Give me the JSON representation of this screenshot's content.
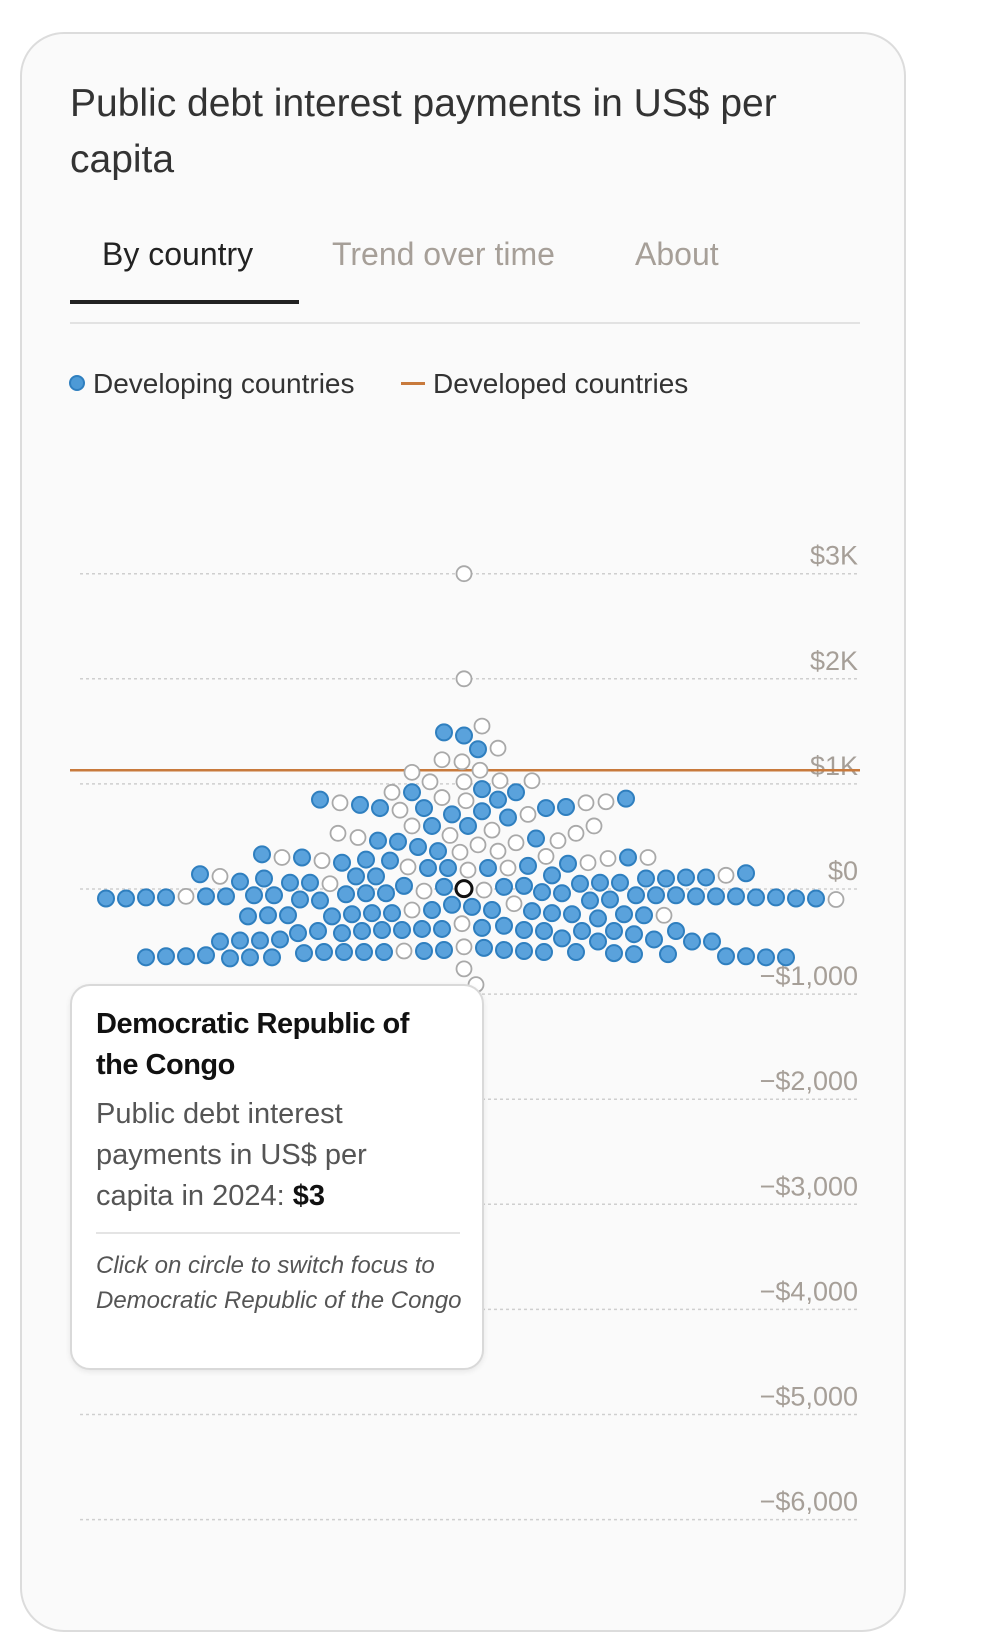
{
  "title": "Public debt interest payments in US$ per capita",
  "tabs": [
    {
      "label": "By country",
      "active": true
    },
    {
      "label": "Trend over time",
      "active": false
    },
    {
      "label": "About",
      "active": false
    }
  ],
  "legend": {
    "developing": "Developing countries",
    "developed": "Developed countries"
  },
  "colors": {
    "developing_fill": "#5aa2dc",
    "developing_stroke": "#2f7fbf",
    "other_stroke": "#a9a9a9",
    "developed_line": "#c87a3c",
    "highlight_stroke": "#111111",
    "axis_label": "#a69f98",
    "grid": "#cfcfcf"
  },
  "chart_data": {
    "type": "scatter",
    "title": "Public debt interest payments in US$ per capita",
    "xlabel": "",
    "ylabel": "",
    "ylim": [
      -6000,
      3000
    ],
    "y_ticks": [
      {
        "value": 3000,
        "label": "$3K"
      },
      {
        "value": 2000,
        "label": "$2K"
      },
      {
        "value": 1000,
        "label": "$1K"
      },
      {
        "value": 0,
        "label": "$0"
      },
      {
        "value": -1000,
        "label": "−$1,000"
      },
      {
        "value": -2000,
        "label": "−$2,000"
      },
      {
        "value": -3000,
        "label": "−$3,000"
      },
      {
        "value": -4000,
        "label": "−$4,000"
      },
      {
        "value": -5000,
        "label": "−$5,000"
      },
      {
        "value": -6000,
        "label": "−$6,000"
      }
    ],
    "grid": true,
    "legend_position": "top-left",
    "developed_reference": 1130,
    "highlighted": {
      "country": "Democratic Republic of the Congo",
      "year": 2024,
      "value": 3
    },
    "developing_values": [
      1490,
      1460,
      1330,
      950,
      920,
      920,
      850,
      860,
      850,
      780,
      770,
      770,
      770,
      740,
      600,
      680,
      710,
      800,
      600,
      460,
      330,
      450,
      480,
      250,
      270,
      360,
      280,
      400,
      300,
      300,
      240,
      220,
      200,
      200,
      200,
      150,
      130,
      140,
      120,
      120,
      110,
      100,
      110,
      50,
      30,
      60,
      100,
      60,
      100,
      60,
      30,
      70,
      60,
      20,
      20,
      -70,
      -80,
      -80,
      -80,
      -70,
      -70,
      -40,
      -100,
      -90,
      -90,
      -40,
      -40,
      -100,
      -90,
      -110,
      -50,
      -60,
      -30,
      -60,
      -60,
      -110,
      -70,
      -60,
      -70,
      -90,
      -60,
      -80,
      -150,
      -170,
      -260,
      -280,
      -210,
      -240,
      -250,
      -230,
      -230,
      -240,
      -200,
      -240,
      -200,
      -250,
      -260,
      -230,
      -250,
      -380,
      -350,
      -390,
      -390,
      -400,
      -400,
      -430,
      -400,
      -390,
      -370,
      -400,
      -400,
      -400,
      -380,
      -420,
      -420,
      -490,
      -500,
      -500,
      -490,
      -470,
      -480,
      -480,
      -500,
      -610,
      -600,
      -600,
      -560,
      -580,
      -500,
      -590,
      -580,
      -600,
      -600,
      -650,
      -660,
      -640,
      -650,
      -640,
      -650,
      -620,
      -600,
      -650,
      -600,
      -640,
      -620,
      -640,
      -610,
      -590,
      -650,
      -630
    ],
    "other_values": [
      3000,
      2000,
      1550,
      1340,
      1210,
      1230,
      1110,
      1130,
      1030,
      1020,
      1030,
      1020,
      870,
      840,
      920,
      820,
      820,
      830,
      750,
      710,
      600,
      490,
      510,
      600,
      560,
      530,
      530,
      460,
      440,
      350,
      360,
      250,
      310,
      420,
      300,
      180,
      290,
      270,
      300,
      200,
      210,
      120,
      130,
      50,
      -10,
      -20,
      -70,
      -100,
      -140,
      -200,
      -250,
      -330,
      -550,
      -590,
      -760,
      -910
    ]
  },
  "tooltip": {
    "country": "Democratic Republic of the Congo",
    "metric": "Public debt interest payments in US$ per capita in 2024:",
    "value": "$3",
    "hint": "Click on circle to switch focus to Democratic Republic of the Congo"
  }
}
